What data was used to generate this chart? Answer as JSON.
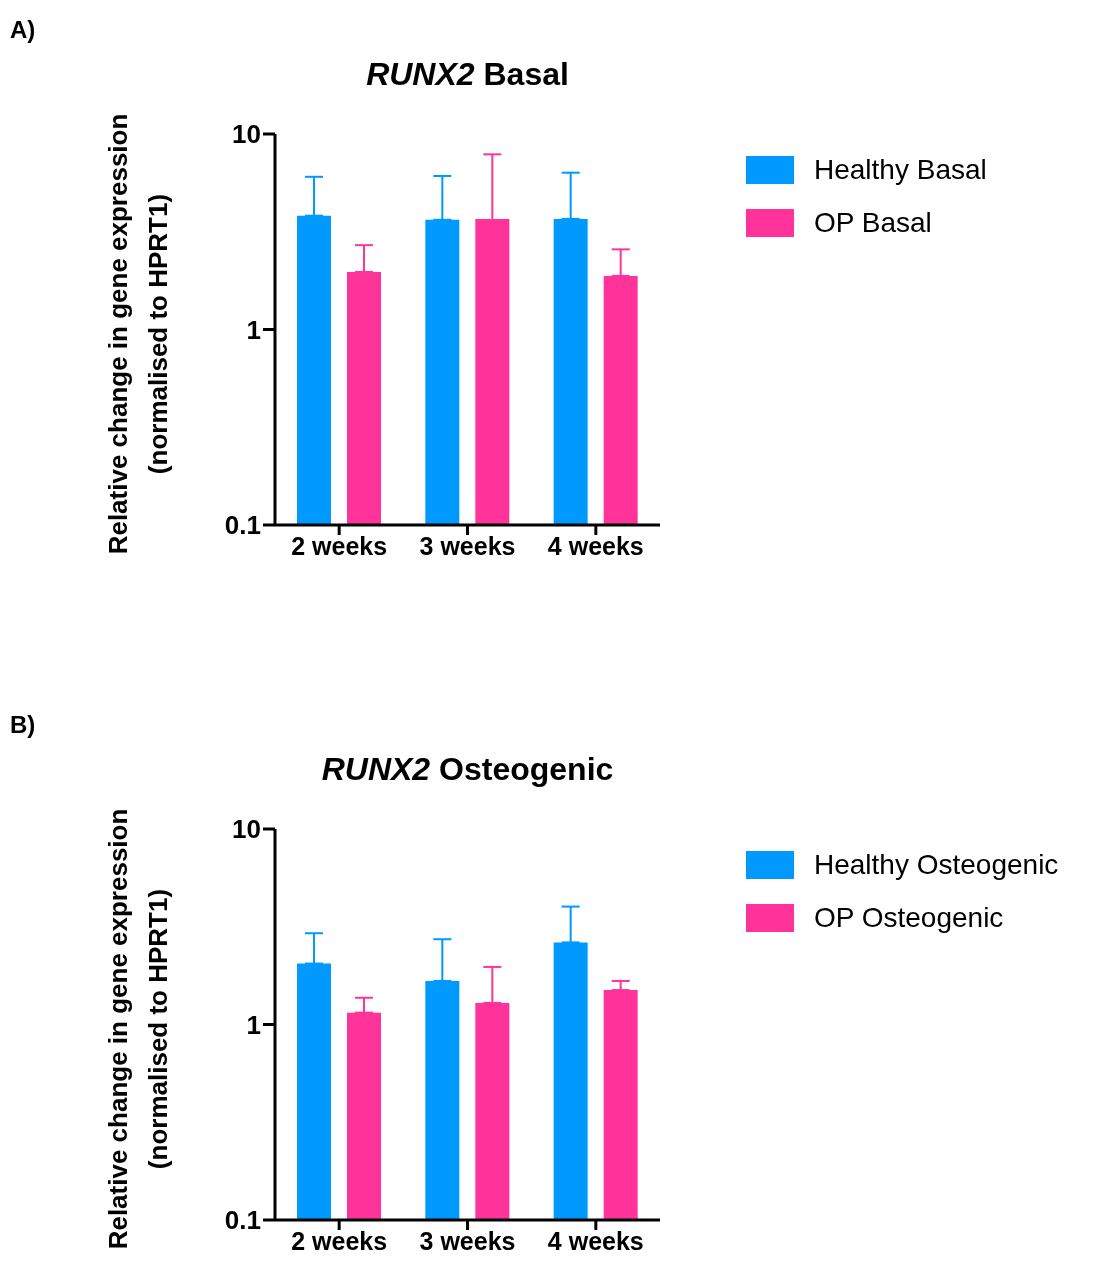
{
  "chart_data": [
    {
      "type": "bar",
      "title": "RUNX2 Basal",
      "ylabel": "Relative change in gene expression (normalised to HPRT1)",
      "annotations": [
        "A)"
      ],
      "categories": [
        "2 weeks",
        "3 weeks",
        "4 weeks"
      ],
      "log": true,
      "ylim": [
        0.1,
        10
      ],
      "yticks": [
        0.1,
        1,
        10
      ],
      "grid": false,
      "legend": "top right",
      "series": [
        {
          "name": "Healthy Basal",
          "color": "#0099ff",
          "values": [
            3.82,
            3.64,
            3.68
          ],
          "errors": [
            [
              3.82,
              6.04
            ],
            [
              3.64,
              6.1
            ],
            [
              3.68,
              6.34
            ]
          ]
        },
        {
          "name": "OP Basal",
          "color": "#ff3399",
          "values": [
            1.97,
            3.68,
            1.88
          ],
          "errors": [
            [
              1.97,
              2.7
            ],
            [
              0.1,
              7.87
            ],
            [
              1.88,
              2.57
            ]
          ]
        }
      ]
    },
    {
      "type": "bar",
      "title": "RUNX2 Osteogenic",
      "ylabel": "Relative change in gene expression (normalised to HPRT1)",
      "annotations": [
        "B)"
      ],
      "categories": [
        "2 weeks",
        "3 weeks",
        "4 weeks"
      ],
      "log": true,
      "ylim": [
        0.1,
        10
      ],
      "yticks": [
        0.1,
        1,
        10
      ],
      "grid": false,
      "legend": "top right",
      "series": [
        {
          "name": "Healthy Osteogenic",
          "color": "#0099ff",
          "values": [
            2.05,
            1.67,
            2.63
          ],
          "errors": [
            [
              2.05,
              2.93
            ],
            [
              1.67,
              2.73
            ],
            [
              2.63,
              4.01
            ]
          ]
        },
        {
          "name": "OP Osteogenic",
          "color": "#ff3399",
          "values": [
            1.15,
            1.29,
            1.5
          ],
          "errors": [
            [
              1.15,
              1.37
            ],
            [
              1.29,
              1.97
            ],
            [
              1.5,
              1.67
            ]
          ]
        }
      ]
    }
  ]
}
